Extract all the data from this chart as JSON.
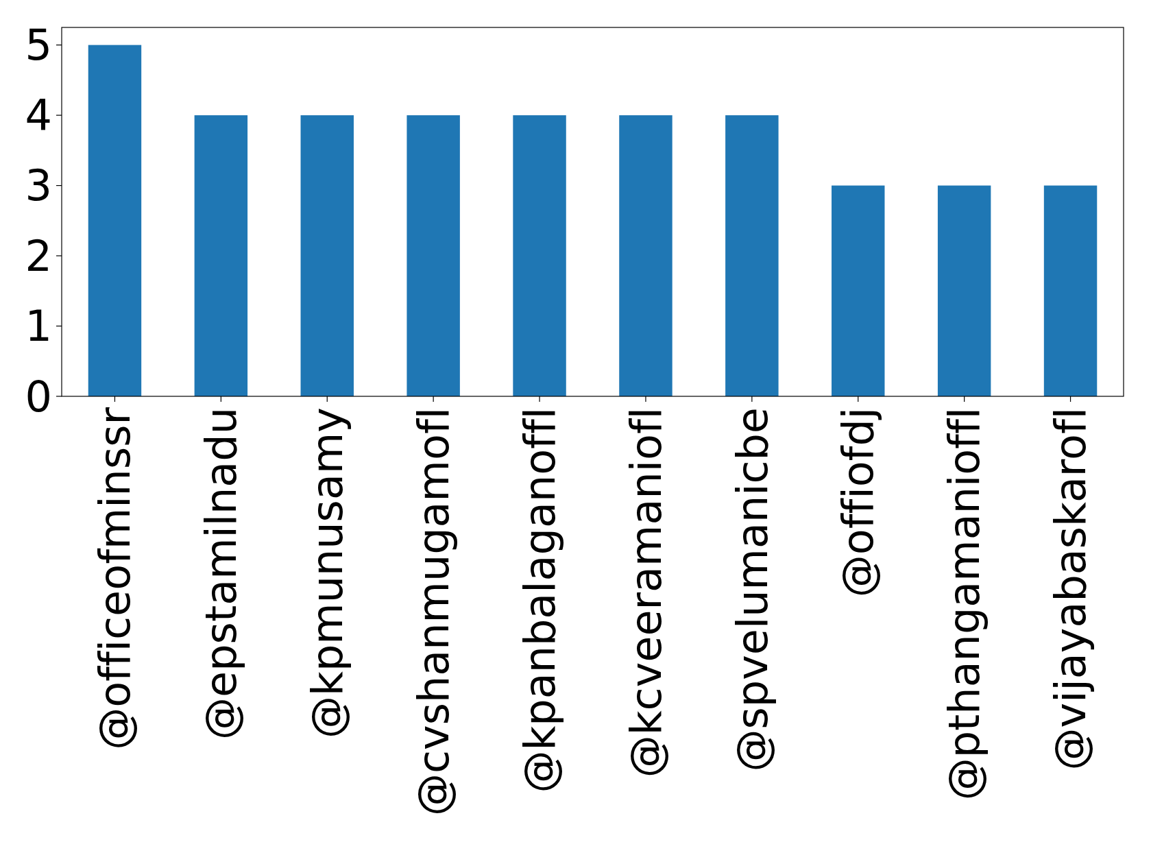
{
  "chart_data": {
    "type": "bar",
    "categories": [
      "@officeofminssr",
      "@epstamilnadu",
      "@kpmunusamy",
      "@cvshanmugamofl",
      "@kpanbalaganoffl",
      "@kcveeramaniofl",
      "@spvelumanicbe",
      "@offiofdj",
      "@pthangamanioffl",
      "@vijayabaskarofl"
    ],
    "values": [
      5,
      4,
      4,
      4,
      4,
      4,
      4,
      3,
      3,
      3
    ],
    "color": "#1f77b4",
    "ylim": [
      0,
      5.25
    ],
    "yticks": [
      0,
      1,
      2,
      3,
      4,
      5
    ],
    "grid": false
  }
}
